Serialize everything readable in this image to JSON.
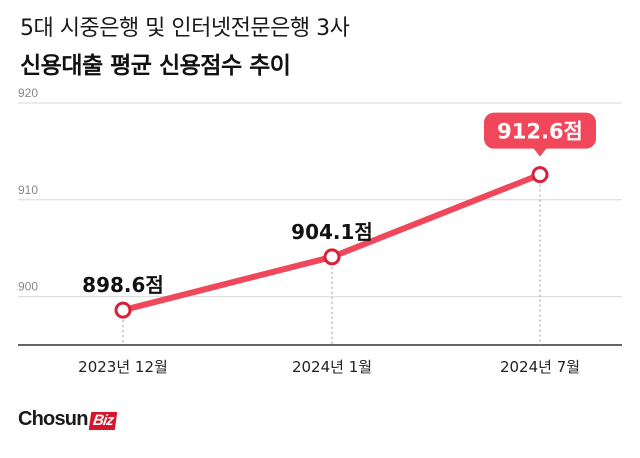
{
  "header": {
    "subtitle": "5대 시중은행 및 인터넷전문은행 3사",
    "title": "신용대출 평균 신용점수 추이"
  },
  "brand": {
    "name": "Chosun",
    "suffix": "Biz"
  },
  "colors": {
    "line": "#f0485a",
    "point_stroke": "#d9203a",
    "highlight_label_bg": "#f0485a",
    "grid": "#d9d9d9",
    "axis": "#555555"
  },
  "chart_data": {
    "type": "line",
    "title": "신용대출 평균 신용점수 추이",
    "categories": [
      "2023년 12월",
      "2024년 1월",
      "2024년 7월"
    ],
    "values": [
      898.6,
      904.1,
      912.6
    ],
    "value_labels": [
      "898.6점",
      "904.1점",
      "912.6점"
    ],
    "y_ticks": [
      "900",
      "910",
      "920"
    ],
    "ylim": [
      895,
      920
    ],
    "highlight_index": 2,
    "grid": true,
    "legend": "none"
  }
}
